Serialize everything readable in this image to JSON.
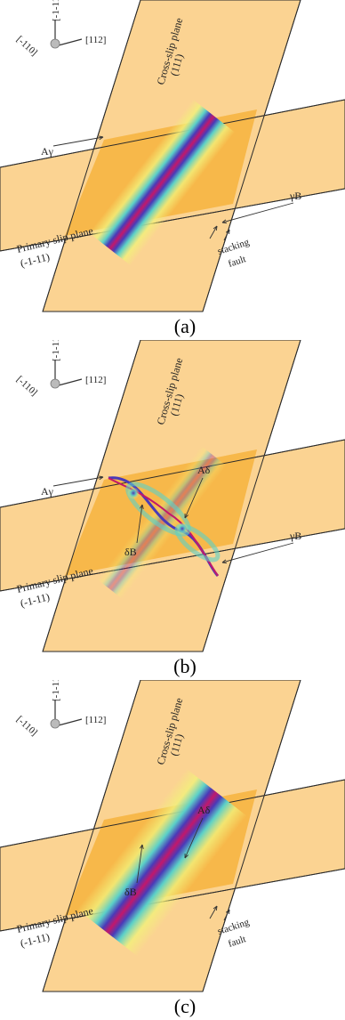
{
  "panels": [
    {
      "caption": "(a)",
      "variant": "a",
      "axes": {
        "x": "[-110]",
        "y": "[-1-11]",
        "z": "[112]"
      },
      "cross_plane": [
        "Cross-slip plane",
        "(111)"
      ],
      "primary_plane": [
        "Primary slip plane",
        "(-1-11)"
      ],
      "partials": {
        "left": "Aγ",
        "right": "γB"
      },
      "fault": [
        "stacking",
        "fault"
      ]
    },
    {
      "caption": "(b)",
      "variant": "b",
      "axes": {
        "x": "[-110]",
        "y": "[-1-11]",
        "z": "[112]"
      },
      "cross_plane": [
        "Cross-slip plane",
        "(111)"
      ],
      "primary_plane": [
        "Primary slip plane",
        "(-1-11)"
      ],
      "partials": {
        "left": "Aγ",
        "right": "γB",
        "upper": "Aδ",
        "lower": "δB"
      }
    },
    {
      "caption": "(c)",
      "variant": "c",
      "axes": {
        "x": "[-110]",
        "y": "[-1-11]",
        "z": "[112]"
      },
      "cross_plane": [
        "Cross-slip plane",
        "(111)"
      ],
      "primary_plane": [
        "Primary slip plane",
        "(-1-11)"
      ],
      "partials": {
        "upper": "Aδ",
        "lower": "δB"
      },
      "fault": [
        "stacking",
        "fault"
      ]
    }
  ],
  "colors": {
    "plane_light": "#fbd392",
    "plane_overlap": "#f7b84a",
    "plane_edge": "#2a2a2a",
    "core_outer": "#f2f07a",
    "core_mid": "#5bd0c8",
    "core_inner": "#4a3ab8",
    "core_center": "#c2186b"
  }
}
